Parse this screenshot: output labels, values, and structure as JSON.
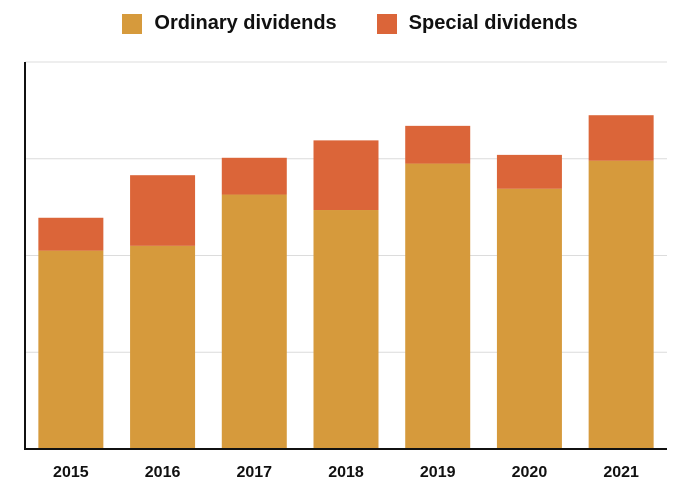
{
  "chart_data": {
    "type": "bar",
    "stacked": true,
    "categories": [
      "2015",
      "2016",
      "2017",
      "2018",
      "2019",
      "2020",
      "2021"
    ],
    "series": [
      {
        "name": "Ordinary dividends",
        "color": "#d69a3c",
        "values": [
          2.05,
          2.1,
          2.63,
          2.47,
          2.95,
          2.69,
          2.98
        ]
      },
      {
        "name": "Special dividends",
        "color": "#db6539",
        "values": [
          0.34,
          0.73,
          0.38,
          0.72,
          0.39,
          0.35,
          0.47
        ]
      }
    ],
    "ylim": [
      0,
      4
    ],
    "grid": true,
    "y_tick_labels_visible": false,
    "legend_position": "top"
  }
}
